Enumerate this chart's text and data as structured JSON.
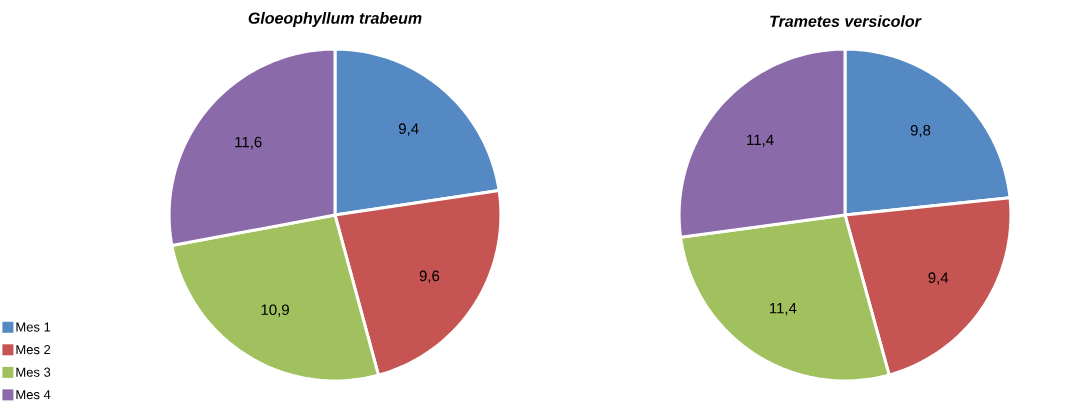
{
  "chart_data": [
    {
      "type": "pie",
      "title": "Gloeophyllum trabeum",
      "categories": [
        "Mes 1",
        "Mes 2",
        "Mes 3",
        "Mes 4"
      ],
      "values": [
        9.4,
        9.6,
        10.9,
        11.6
      ],
      "value_labels": [
        "9,4",
        "9,6",
        "10,9",
        "11,6"
      ],
      "colors": [
        "#5589c4",
        "#c65452",
        "#a1c05e",
        "#8a6aa8"
      ],
      "legend": "bottom left"
    },
    {
      "type": "pie",
      "title": "Trametes versicolor",
      "categories": [
        null,
        null,
        null,
        null
      ],
      "values": [
        9.8,
        9.4,
        11.4,
        11.4
      ],
      "value_labels": [
        "9,8",
        "9,4",
        "11,4",
        "11,4"
      ],
      "colors": [
        "#5589c4",
        "#c65452",
        "#a1c05e",
        "#8a6aa8"
      ],
      "legend": false
    }
  ]
}
